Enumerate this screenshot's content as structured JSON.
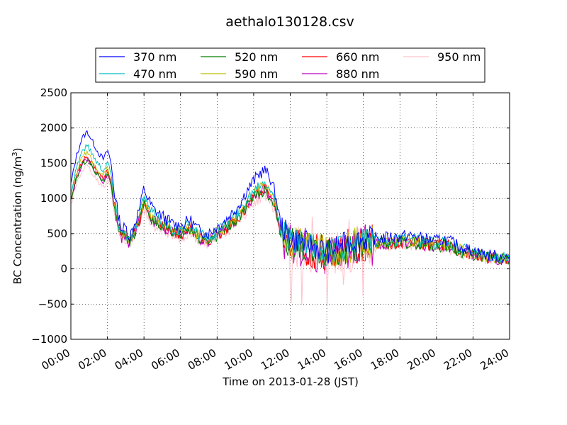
{
  "chart_data": {
    "type": "line",
    "title": "aethalo130128.csv",
    "xlabel": "Time on 2013-01-28 (JST)",
    "ylabel_main": "BC Concentration (ng/m",
    "ylabel_sup": "3",
    "ylabel_close": ")",
    "ylim": [
      -1000,
      2500
    ],
    "xlim": [
      0,
      24
    ],
    "yticks": [
      -1000,
      -500,
      0,
      500,
      1000,
      1500,
      2000,
      2500
    ],
    "ytick_labels": [
      "−1000",
      "−500",
      "0",
      "500",
      "1000",
      "1500",
      "2000",
      "2500"
    ],
    "xticks": [
      0,
      2,
      4,
      6,
      8,
      10,
      12,
      14,
      16,
      18,
      20,
      22,
      24
    ],
    "xtick_labels": [
      "00:00",
      "02:00",
      "04:00",
      "06:00",
      "08:00",
      "10:00",
      "12:00",
      "14:00",
      "16:00",
      "18:00",
      "20:00",
      "22:00",
      "24:00"
    ],
    "grid": true,
    "legend_position": "top-center",
    "series": [
      {
        "name": "370 nm",
        "color": "#0000ff",
        "offset": 1.0
      },
      {
        "name": "470 nm",
        "color": "#00bfbf",
        "offset": 0.9
      },
      {
        "name": "520 nm",
        "color": "#008000",
        "offset": 0.8
      },
      {
        "name": "590 nm",
        "color": "#bfbf00",
        "offset": 0.85
      },
      {
        "name": "660 nm",
        "color": "#ff0000",
        "offset": 0.82
      },
      {
        "name": "880 nm",
        "color": "#bf00bf",
        "offset": 0.8
      },
      {
        "name": "950 nm",
        "color": "#ffc0cb",
        "offset": 0.75
      }
    ],
    "base_profile": {
      "x": [
        0,
        0.3,
        0.6,
        0.9,
        1.2,
        1.5,
        1.8,
        2.0,
        2.2,
        2.4,
        2.6,
        2.8,
        3.0,
        3.2,
        3.5,
        3.8,
        4.0,
        4.2,
        4.5,
        5.0,
        5.5,
        6.0,
        6.5,
        7.0,
        7.5,
        8.0,
        8.5,
        9.0,
        9.3,
        9.6,
        10.0,
        10.3,
        10.6,
        10.9,
        11.2,
        11.5,
        12.0,
        12.5,
        13.0,
        13.5,
        14.0,
        14.5,
        15.0,
        15.5,
        16.0,
        16.5,
        17.0,
        17.5,
        18.0,
        18.5,
        19.0,
        19.5,
        20.0,
        20.5,
        21.0,
        21.5,
        22.0,
        22.5,
        23.0,
        23.5,
        24.0
      ],
      "y": [
        1200,
        1600,
        1850,
        1950,
        1800,
        1650,
        1550,
        1700,
        1500,
        1050,
        750,
        550,
        600,
        450,
        650,
        900,
        1150,
        1000,
        850,
        750,
        650,
        600,
        700,
        550,
        500,
        600,
        700,
        850,
        950,
        1100,
        1250,
        1350,
        1400,
        1300,
        1050,
        600,
        450,
        400,
        350,
        300,
        250,
        300,
        350,
        400,
        420,
        430,
        440,
        450,
        460,
        470,
        450,
        420,
        400,
        420,
        350,
        300,
        250,
        220,
        190,
        170,
        160
      ]
    }
  }
}
